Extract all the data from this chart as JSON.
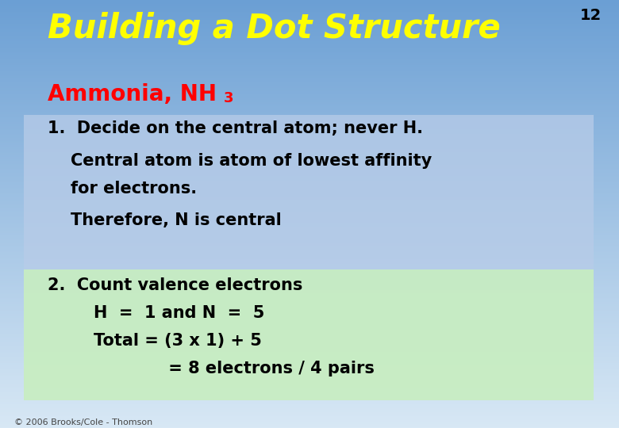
{
  "title": "Building a Dot Structure",
  "slide_number": "12",
  "bg_color_top": "#6B9FD4",
  "bg_color_bottom": "#D8E8F5",
  "box1_color": "#B8CCE8",
  "box2_color": "#C8EEC0",
  "title_color": "#FFFF00",
  "subtitle_color": "#FF0000",
  "text_color": "#000000",
  "slide_num_color": "#000000",
  "footer": "© 2006 Brooks/Cole - Thomson",
  "line1": "1.  Decide on the central atom; never H.",
  "line2": "    Central atom is atom of lowest affinity",
  "line3": "    for electrons.",
  "line4": "    Therefore, N is central",
  "line5": "2.  Count valence electrons",
  "line6": "        H  =  1 and N  =  5",
  "line7": "        Total = (3 x 1) + 5",
  "line8": "                     = 8 electrons / 4 pairs"
}
